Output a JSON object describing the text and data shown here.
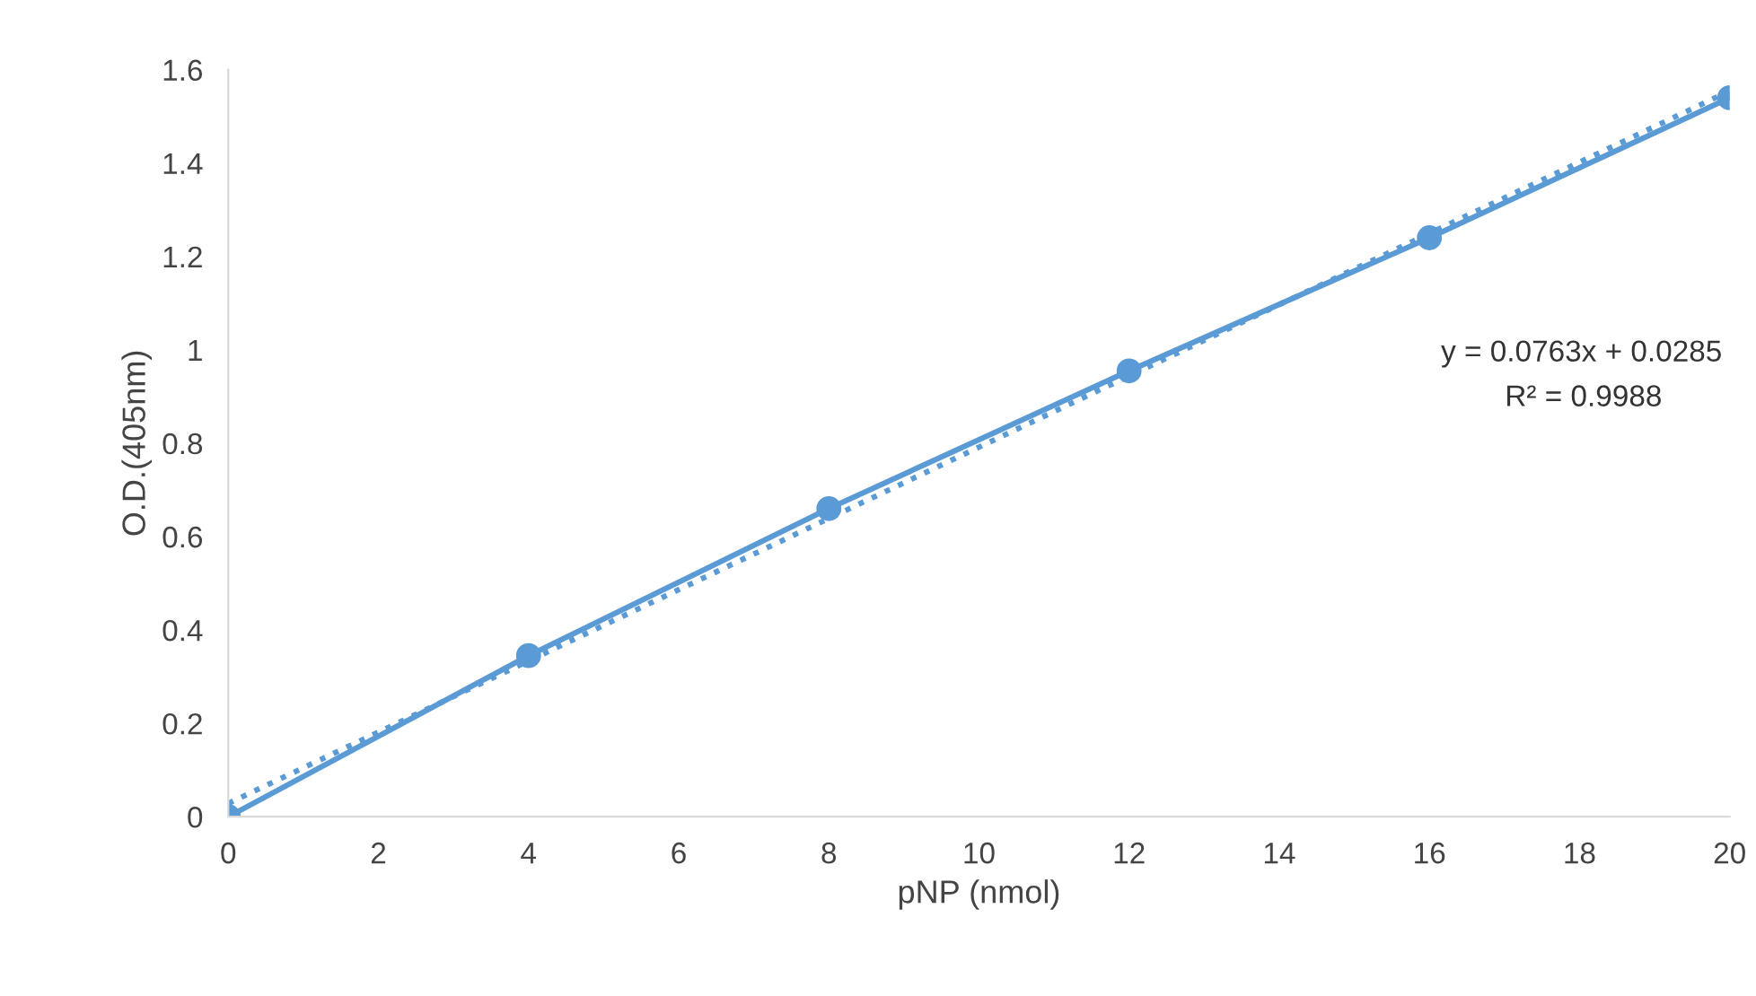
{
  "chart_data": {
    "type": "line",
    "xlabel": "pNP (nmol)",
    "ylabel": "O.D.(405nm)",
    "xlim": [
      0,
      20
    ],
    "xticks": [
      0,
      2,
      4,
      6,
      8,
      10,
      12,
      14,
      16,
      18,
      20
    ],
    "ylim": [
      0,
      1.6
    ],
    "yticks": [
      0,
      {
        "value": 0.2,
        "label": "0.2"
      },
      {
        "value": 0.4,
        "label": "0.4"
      },
      {
        "value": 0.6,
        "label": "0.6"
      },
      {
        "value": 0.8,
        "label": "0.8"
      },
      1,
      {
        "value": 1.2,
        "label": "1.2"
      },
      {
        "value": 1.4,
        "label": "1.4"
      },
      {
        "value": 1.6,
        "label": "1.6"
      }
    ],
    "grid": false,
    "marker": "circle",
    "line_style": "solid",
    "series": [
      {
        "color": "#5b9bd5",
        "x": [
          0,
          4,
          8,
          12,
          16,
          20
        ],
        "values": [
          0,
          0.345,
          0.66,
          0.955,
          1.24,
          1.54
        ]
      },
      {
        "type": "line",
        "color": "#5b9bd5",
        "line_style": "dotted",
        "marker": "none",
        "x": [
          0,
          20
        ],
        "values": [
          0.0285,
          1.5545
        ]
      }
    ],
    "annotations": [
      "y = 0.0763x + 0.0285",
      "R² = 0.9988"
    ]
  }
}
